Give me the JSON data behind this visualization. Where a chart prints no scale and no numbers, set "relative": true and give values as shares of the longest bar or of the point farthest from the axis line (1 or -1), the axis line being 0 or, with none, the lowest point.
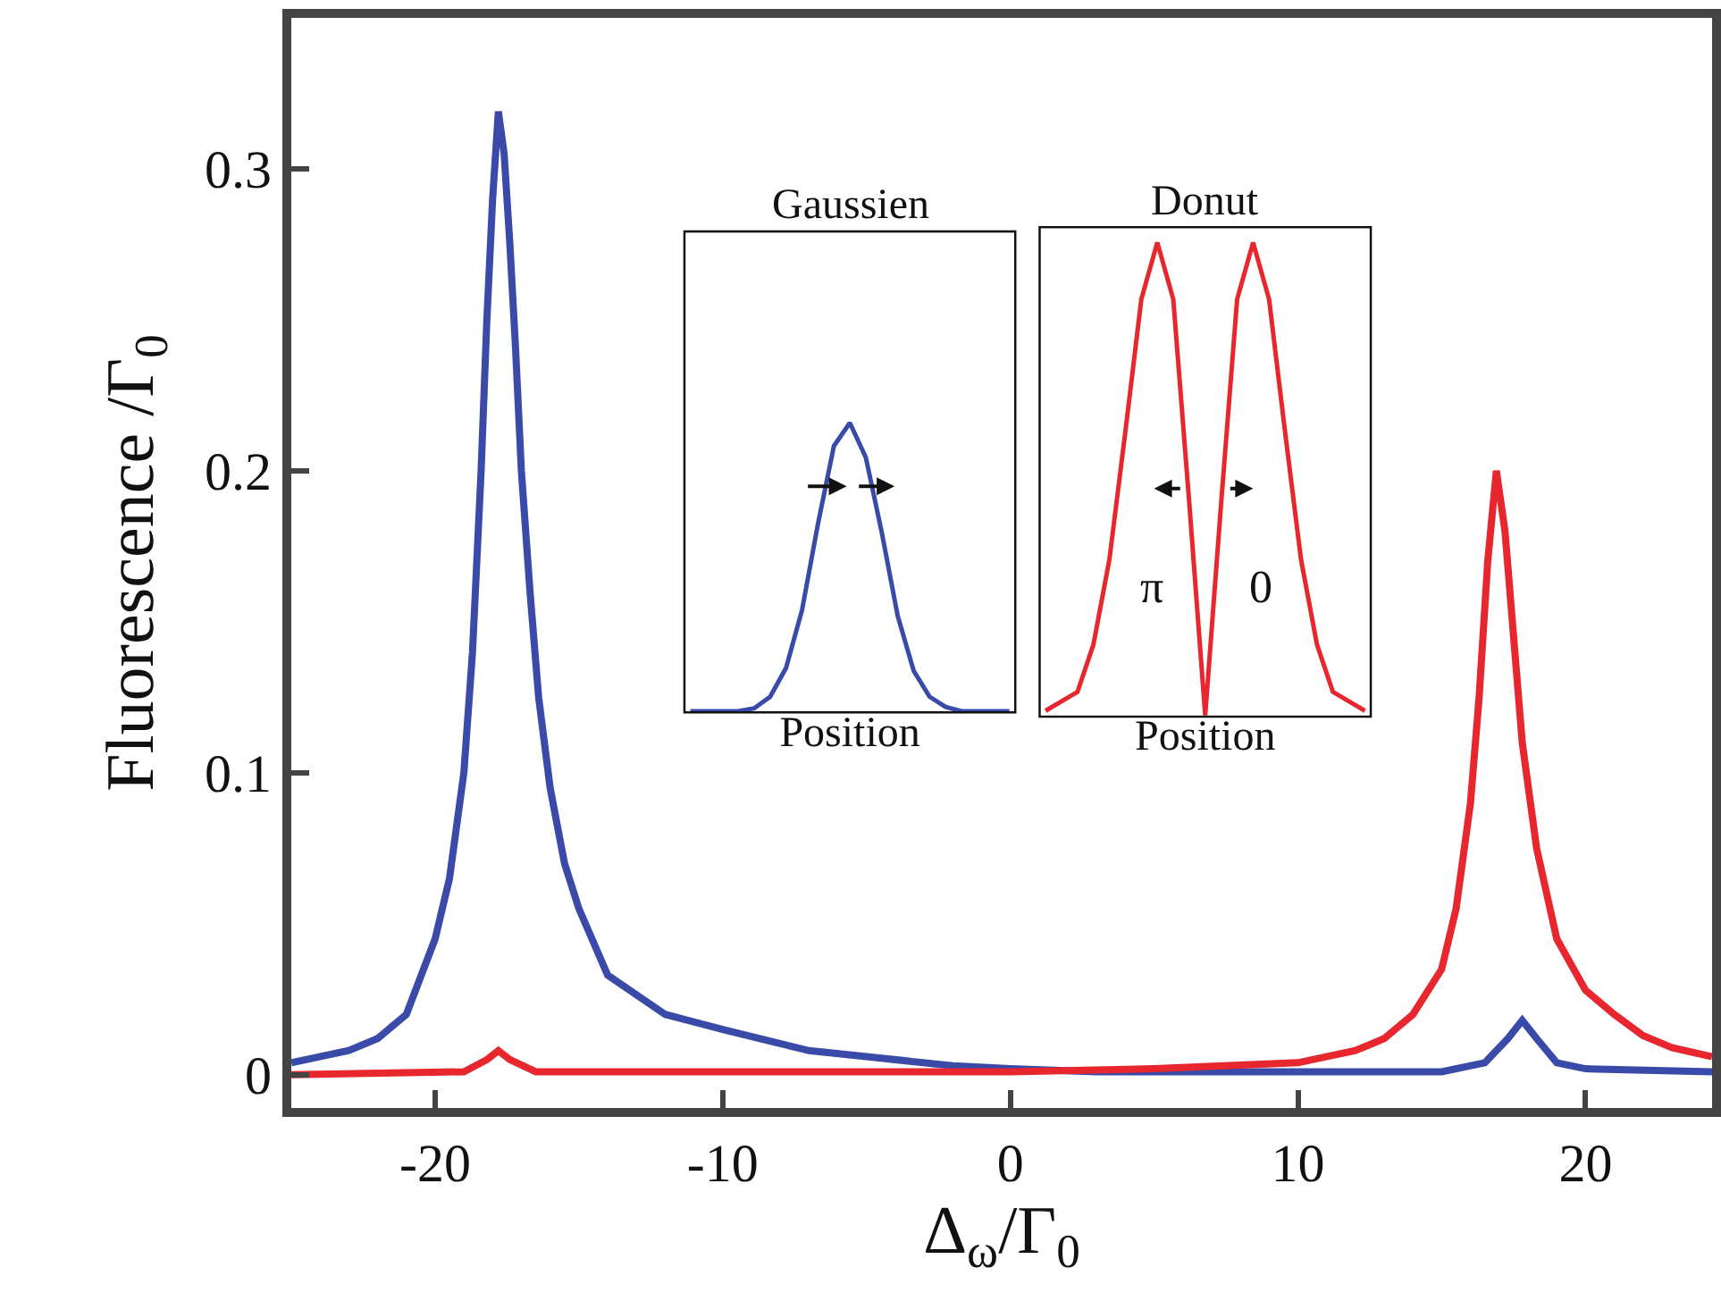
{
  "chart_data": [
    {
      "type": "line",
      "xlabel": "Δ$_{ω}$/Γ$_{0}$",
      "ylabel": "Fluorescence /Γ$_{0}$",
      "xlim": [
        -25,
        24.4
      ],
      "ylim": [
        -0.011,
        0.35
      ],
      "xticks": [
        -20,
        -10,
        0,
        10,
        20
      ],
      "yticks": [
        0,
        0.1,
        0.2,
        0.3
      ],
      "series": [
        {
          "color": "#3a4aa8",
          "x": [
            -25,
            -23,
            -22,
            -21,
            -20,
            -19.5,
            -19,
            -18.7,
            -18.4,
            -18.2,
            -18,
            -17.8,
            -17.6,
            -17.4,
            -17.2,
            -17,
            -16.7,
            -16.4,
            -16,
            -15.5,
            -15,
            -14,
            -12,
            -10,
            -7,
            -5,
            -2,
            0,
            3,
            10,
            15,
            16.5,
            17.3,
            17.8,
            18.3,
            19,
            20,
            24.4
          ],
          "values": [
            0.004,
            0.008,
            0.012,
            0.02,
            0.045,
            0.065,
            0.1,
            0.14,
            0.2,
            0.25,
            0.29,
            0.319,
            0.305,
            0.275,
            0.24,
            0.2,
            0.16,
            0.125,
            0.095,
            0.07,
            0.055,
            0.033,
            0.02,
            0.015,
            0.008,
            0.006,
            0.003,
            0.002,
            0.001,
            0.001,
            0.001,
            0.004,
            0.012,
            0.018,
            0.012,
            0.004,
            0.002,
            0.001
          ]
        },
        {
          "color": "#e8262d",
          "x": [
            -25,
            -19,
            -18.2,
            -17.8,
            -17.4,
            -16.5,
            0,
            5,
            10,
            12,
            13,
            14,
            15,
            15.5,
            16,
            16.3,
            16.6,
            16.9,
            17.2,
            17.5,
            17.8,
            18.3,
            19,
            20,
            21,
            22,
            23,
            24.4
          ],
          "values": [
            0,
            0.001,
            0.005,
            0.008,
            0.005,
            0.001,
            0.001,
            0.002,
            0.004,
            0.008,
            0.012,
            0.02,
            0.035,
            0.055,
            0.09,
            0.125,
            0.17,
            0.2,
            0.18,
            0.145,
            0.11,
            0.075,
            0.045,
            0.028,
            0.02,
            0.013,
            0.009,
            0.006
          ]
        }
      ]
    },
    {
      "type": "line",
      "title": "Gaussien",
      "xlabel": "Position",
      "relative": true,
      "categories": [
        null,
        null,
        null,
        null,
        null,
        null,
        null,
        null,
        null,
        null,
        null,
        null,
        null,
        null,
        null,
        null,
        null,
        null,
        null,
        null,
        null
      ],
      "series": [
        {
          "color": "#3a4aa8",
          "values": [
            0,
            0,
            0,
            0,
            0.01,
            0.05,
            0.15,
            0.35,
            0.65,
            0.92,
            1,
            0.88,
            0.62,
            0.33,
            0.14,
            0.05,
            0.015,
            0,
            0,
            0,
            0
          ]
        }
      ]
    },
    {
      "type": "line",
      "title": "Donut",
      "xlabel": "Position",
      "relative": true,
      "categories": [
        null,
        null,
        null,
        null,
        null,
        null,
        null,
        null,
        null,
        null,
        null,
        null,
        null,
        null,
        null,
        null,
        null,
        null,
        null,
        null,
        null
      ],
      "annotations": [
        "π",
        "0"
      ],
      "series": [
        {
          "color": "#e8262d",
          "values": [
            0.01,
            0.03,
            0.05,
            0.15,
            0.33,
            0.6,
            0.88,
            1,
            0.88,
            0.45,
            0,
            0.45,
            0.88,
            1,
            0.88,
            0.6,
            0.33,
            0.15,
            0.05,
            0.03,
            0.01
          ]
        }
      ]
    }
  ]
}
